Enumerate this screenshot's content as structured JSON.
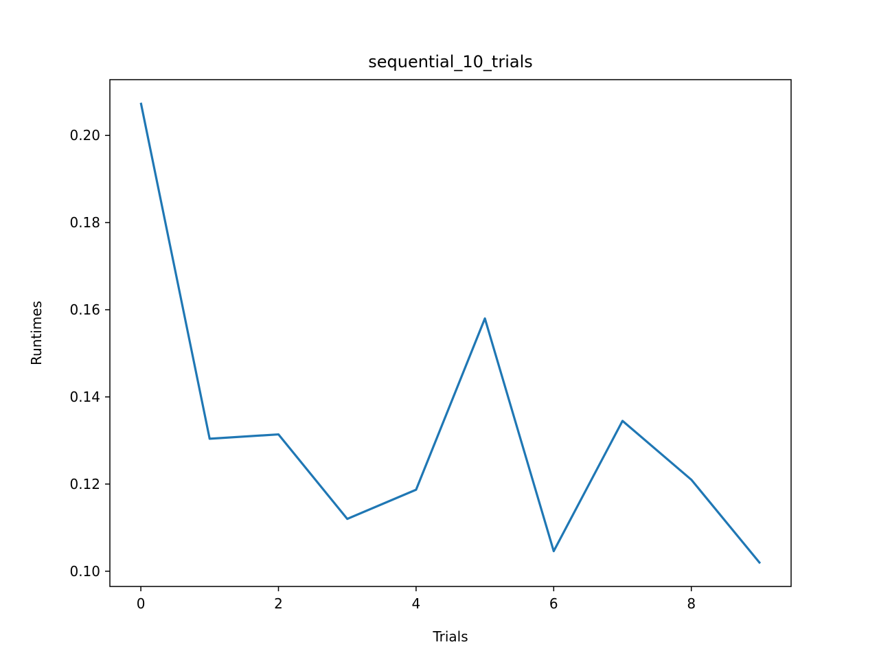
{
  "chart_data": {
    "type": "line",
    "title": "sequential_10_trials",
    "xlabel": "Trials",
    "ylabel": "Runtimes",
    "x": [
      0,
      1,
      2,
      3,
      4,
      5,
      6,
      7,
      8,
      9
    ],
    "series": [
      {
        "values": [
          0.2075,
          0.1304,
          0.1314,
          0.112,
          0.1187,
          0.158,
          0.1046,
          0.1345,
          0.121,
          0.1018
        ],
        "color": "#1f77b4"
      }
    ],
    "xlim": [
      -0.45,
      9.45
    ],
    "ylim": [
      0.0965,
      0.2128
    ],
    "xticks": [
      0,
      2,
      4,
      6,
      8
    ],
    "xtick_labels": [
      "0",
      "2",
      "4",
      "6",
      "8"
    ],
    "yticks": [
      0.1,
      0.12,
      0.14,
      0.16,
      0.18,
      0.2
    ],
    "ytick_labels": [
      "0.10",
      "0.12",
      "0.14",
      "0.16",
      "0.18",
      "0.20"
    ],
    "grid": false,
    "legend": false
  }
}
